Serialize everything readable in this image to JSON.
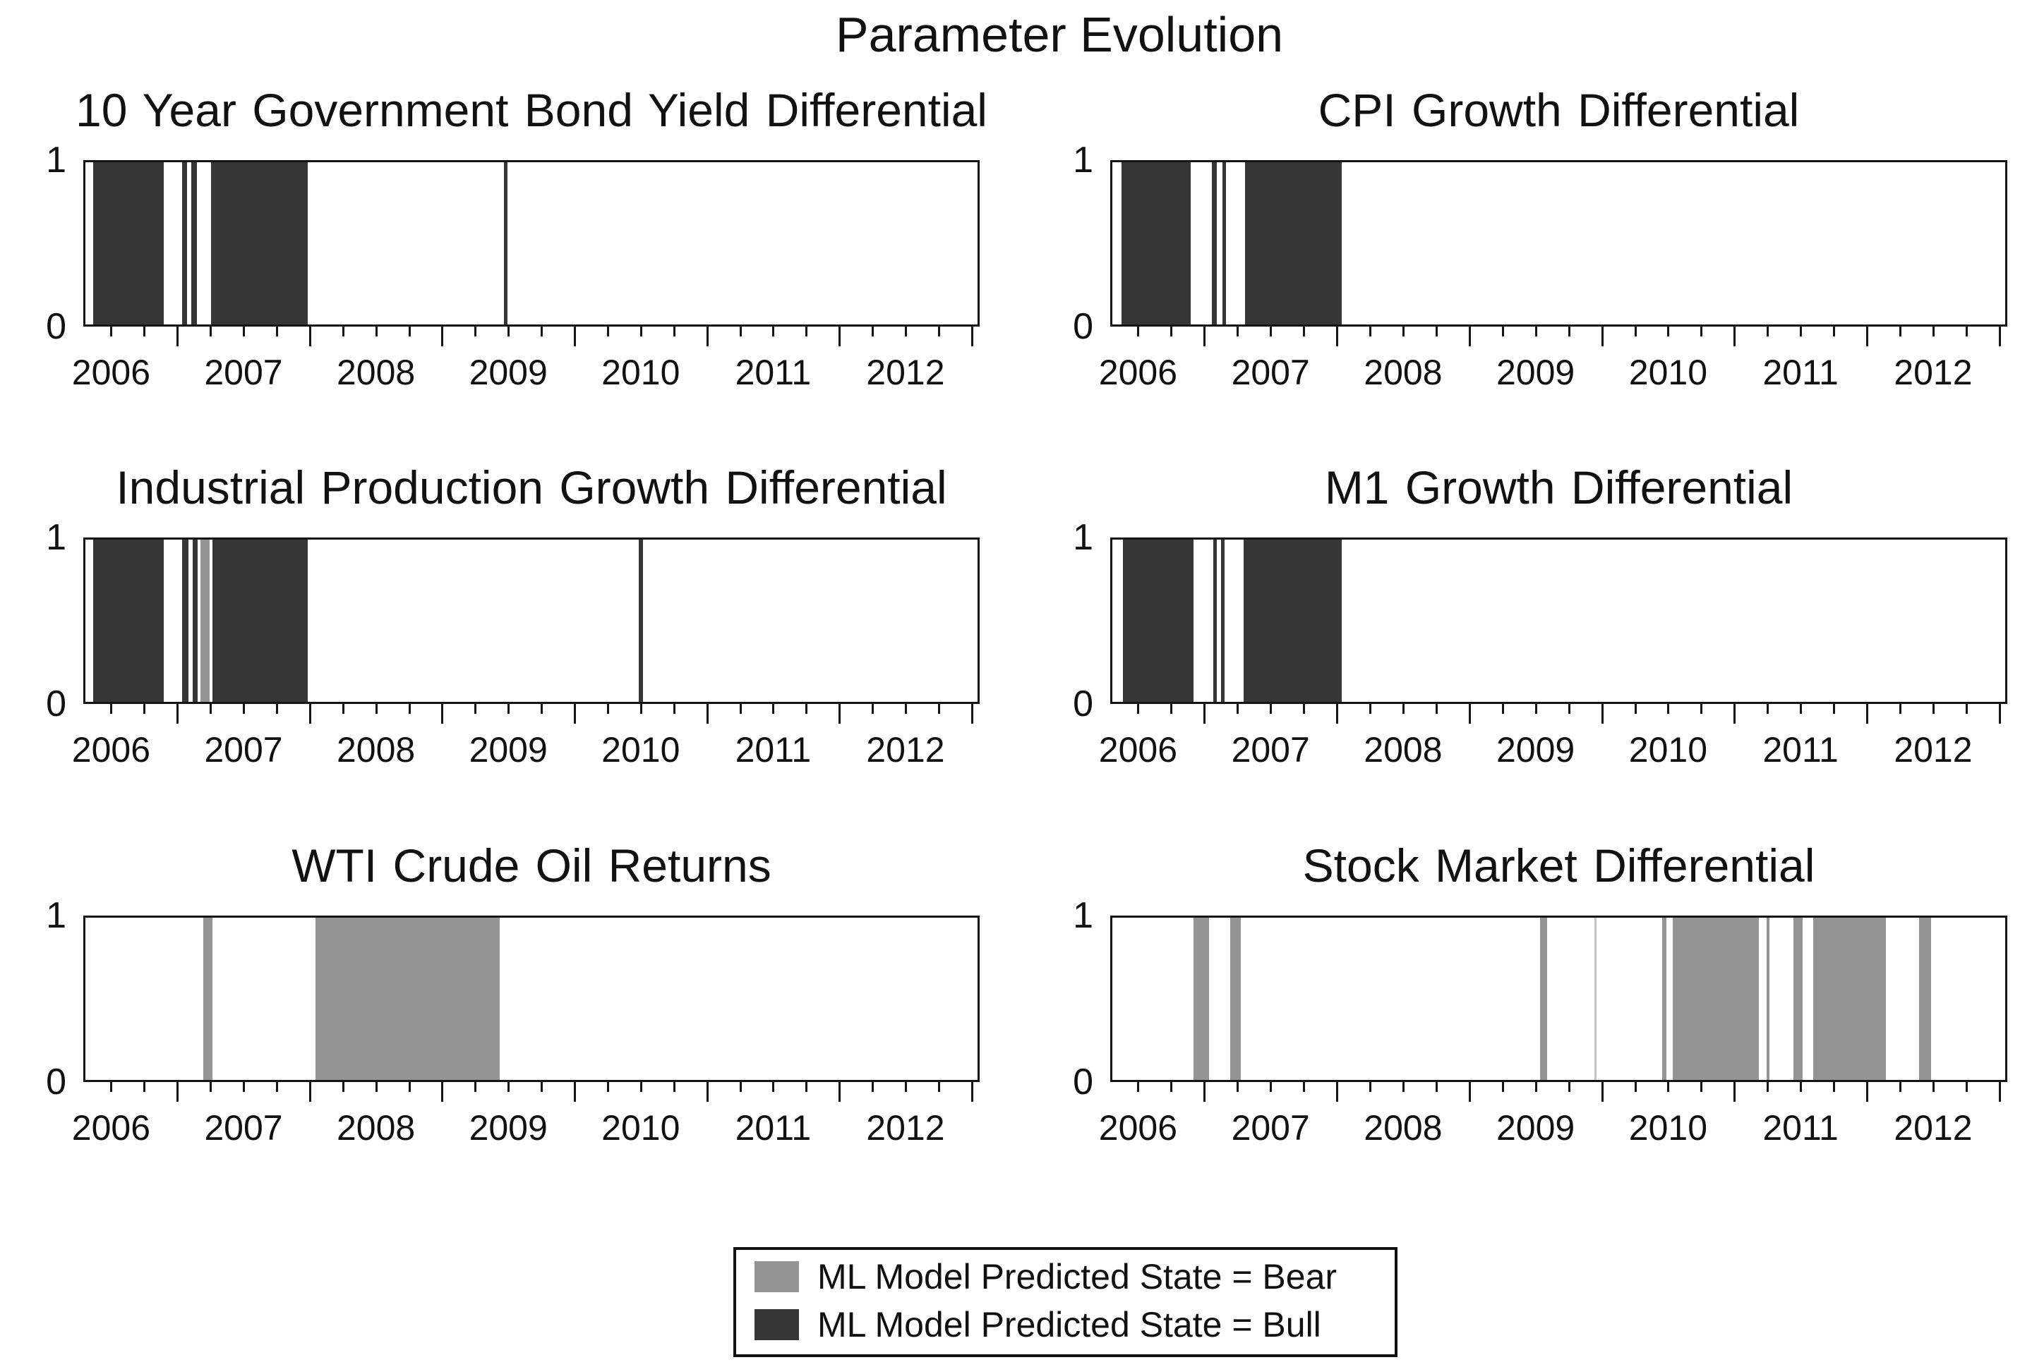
{
  "figure": {
    "title": "Parameter Evolution"
  },
  "axis": {
    "x_min": 2005.79,
    "x_max": 2012.56,
    "year_ticks": [
      2006,
      2007,
      2008,
      2009,
      2010,
      2011,
      2012
    ],
    "minor_tick_step": 0.25,
    "y_labels": [
      "0",
      "1"
    ],
    "ylim": [
      0,
      1
    ]
  },
  "colors": {
    "bull": "#363636",
    "bear": "#949494",
    "bear_light": "#c6c6c6",
    "axis": "#141414"
  },
  "legend": {
    "items": [
      {
        "state": "bear",
        "label": "ML Model Predicted State = Bear"
      },
      {
        "state": "bull",
        "label": "ML Model Predicted State = Bull"
      }
    ]
  },
  "chart_data": [
    {
      "type": "regime-timeline",
      "title": "10 Year Government Bond Yield Differential",
      "x_range": [
        2005.79,
        2012.56
      ],
      "y_range": [
        0,
        1
      ],
      "intervals": [
        {
          "start": 2005.85,
          "end": 2006.38,
          "state": "bull"
        },
        {
          "start": 2006.52,
          "end": 2006.56,
          "state": "bull"
        },
        {
          "start": 2006.59,
          "end": 2006.63,
          "state": "bull"
        },
        {
          "start": 2006.74,
          "end": 2007.47,
          "state": "bull"
        },
        {
          "start": 2008.95,
          "end": 2008.98,
          "state": "bull"
        }
      ]
    },
    {
      "type": "regime-timeline",
      "title": "CPI Growth Differential",
      "x_range": [
        2005.79,
        2012.56
      ],
      "y_range": [
        0,
        1
      ],
      "intervals": [
        {
          "start": 2005.86,
          "end": 2006.38,
          "state": "bull"
        },
        {
          "start": 2006.54,
          "end": 2006.58,
          "state": "bull"
        },
        {
          "start": 2006.62,
          "end": 2006.65,
          "state": "bull"
        },
        {
          "start": 2006.79,
          "end": 2007.52,
          "state": "bull"
        }
      ]
    },
    {
      "type": "regime-timeline",
      "title": "Industrial Production Growth Differential",
      "x_range": [
        2005.79,
        2012.56
      ],
      "y_range": [
        0,
        1
      ],
      "intervals": [
        {
          "start": 2005.85,
          "end": 2006.38,
          "state": "bull"
        },
        {
          "start": 2006.52,
          "end": 2006.57,
          "state": "bull"
        },
        {
          "start": 2006.6,
          "end": 2006.64,
          "state": "bull"
        },
        {
          "start": 2006.66,
          "end": 2006.73,
          "state": "bear"
        },
        {
          "start": 2006.75,
          "end": 2007.47,
          "state": "bull"
        },
        {
          "start": 2009.97,
          "end": 2010.0,
          "state": "bull"
        }
      ]
    },
    {
      "type": "regime-timeline",
      "title": "M1 Growth Differential",
      "x_range": [
        2005.79,
        2012.56
      ],
      "y_range": [
        0,
        1
      ],
      "intervals": [
        {
          "start": 2005.87,
          "end": 2006.4,
          "state": "bull"
        },
        {
          "start": 2006.55,
          "end": 2006.58,
          "state": "bull"
        },
        {
          "start": 2006.61,
          "end": 2006.64,
          "state": "bull"
        },
        {
          "start": 2006.78,
          "end": 2007.52,
          "state": "bull"
        }
      ]
    },
    {
      "type": "regime-timeline",
      "title": "WTI Crude Oil Returns",
      "x_range": [
        2005.79,
        2012.56
      ],
      "y_range": [
        0,
        1
      ],
      "intervals": [
        {
          "start": 2006.68,
          "end": 2006.75,
          "state": "bear"
        },
        {
          "start": 2007.53,
          "end": 2008.92,
          "state": "bear"
        }
      ]
    },
    {
      "type": "regime-timeline",
      "title": "Stock Market Differential",
      "x_range": [
        2005.79,
        2012.56
      ],
      "y_range": [
        0,
        1
      ],
      "intervals": [
        {
          "start": 2006.4,
          "end": 2006.52,
          "state": "bear"
        },
        {
          "start": 2006.68,
          "end": 2006.76,
          "state": "bear"
        },
        {
          "start": 2009.02,
          "end": 2009.07,
          "state": "bear"
        },
        {
          "start": 2009.43,
          "end": 2009.44,
          "state": "bear_light"
        },
        {
          "start": 2009.94,
          "end": 2009.97,
          "state": "bear"
        },
        {
          "start": 2010.02,
          "end": 2010.67,
          "state": "bear"
        },
        {
          "start": 2010.73,
          "end": 2010.75,
          "state": "bear"
        },
        {
          "start": 2010.93,
          "end": 2011.0,
          "state": "bear"
        },
        {
          "start": 2011.08,
          "end": 2011.63,
          "state": "bear"
        },
        {
          "start": 2011.88,
          "end": 2011.97,
          "state": "bear"
        }
      ]
    }
  ]
}
